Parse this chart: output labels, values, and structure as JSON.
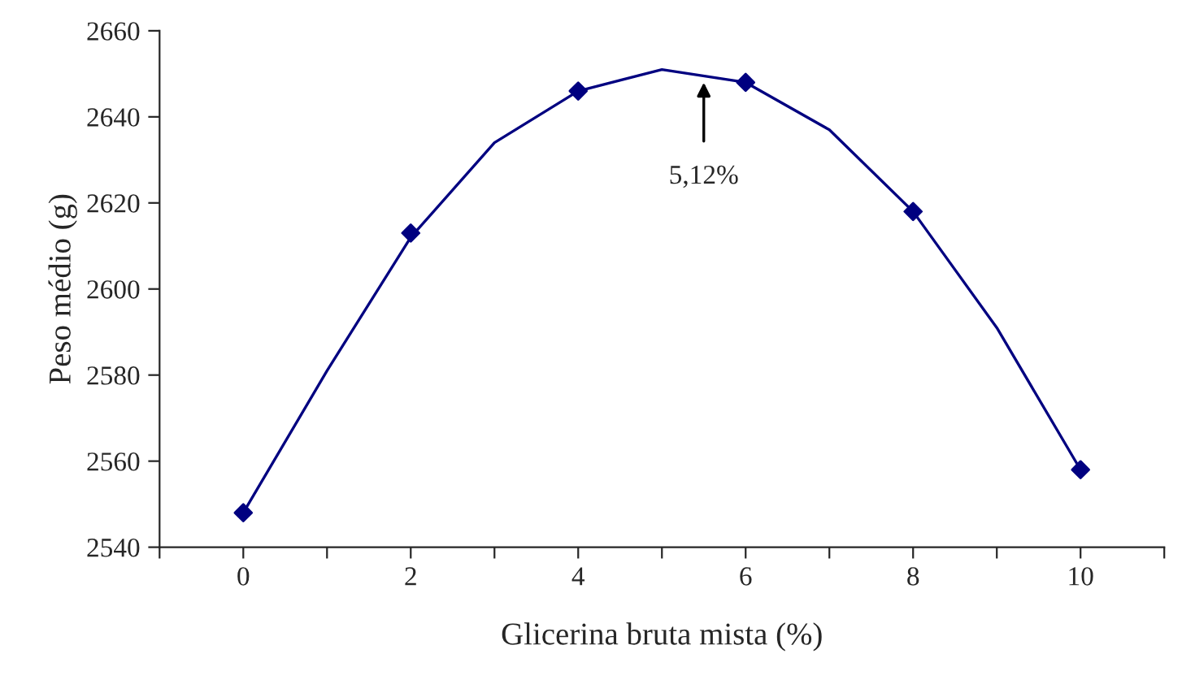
{
  "chart_data": {
    "type": "line",
    "xlabel": "Glicerina bruta mista (%)",
    "ylabel": "Peso médio (g)",
    "series": [
      {
        "type": "scatter",
        "color": "#000080",
        "marker": "diamond",
        "x": [
          0,
          2,
          4,
          6,
          8,
          10
        ],
        "values": [
          2548,
          2613,
          2646,
          2648,
          2618,
          2558
        ]
      },
      {
        "color": "#000080",
        "marker": "none",
        "x": [
          0,
          1,
          2,
          3,
          4,
          5,
          6,
          7,
          8,
          9,
          10
        ],
        "values": [
          2548,
          2581,
          2612,
          2634,
          2646,
          2651,
          2648,
          2637,
          2618,
          2591,
          2558
        ]
      }
    ],
    "xlim": [
      -1,
      11
    ],
    "xticks": [
      {
        "value": -1,
        "label": null
      },
      0,
      {
        "value": 1,
        "label": null
      },
      2,
      {
        "value": 3,
        "label": null
      },
      4,
      {
        "value": 5,
        "label": null
      },
      6,
      {
        "value": 7,
        "label": null
      },
      8,
      {
        "value": 9,
        "label": null
      },
      10,
      {
        "value": 11,
        "label": null
      }
    ],
    "ylim": [
      2540,
      2660
    ],
    "yticks": [
      2540,
      2560,
      2580,
      2600,
      2620,
      2640,
      2660
    ],
    "annotations": [
      {
        "text": "5,12%",
        "x": 5.5,
        "y": 2648
      }
    ],
    "grid": false,
    "legend": false
  }
}
